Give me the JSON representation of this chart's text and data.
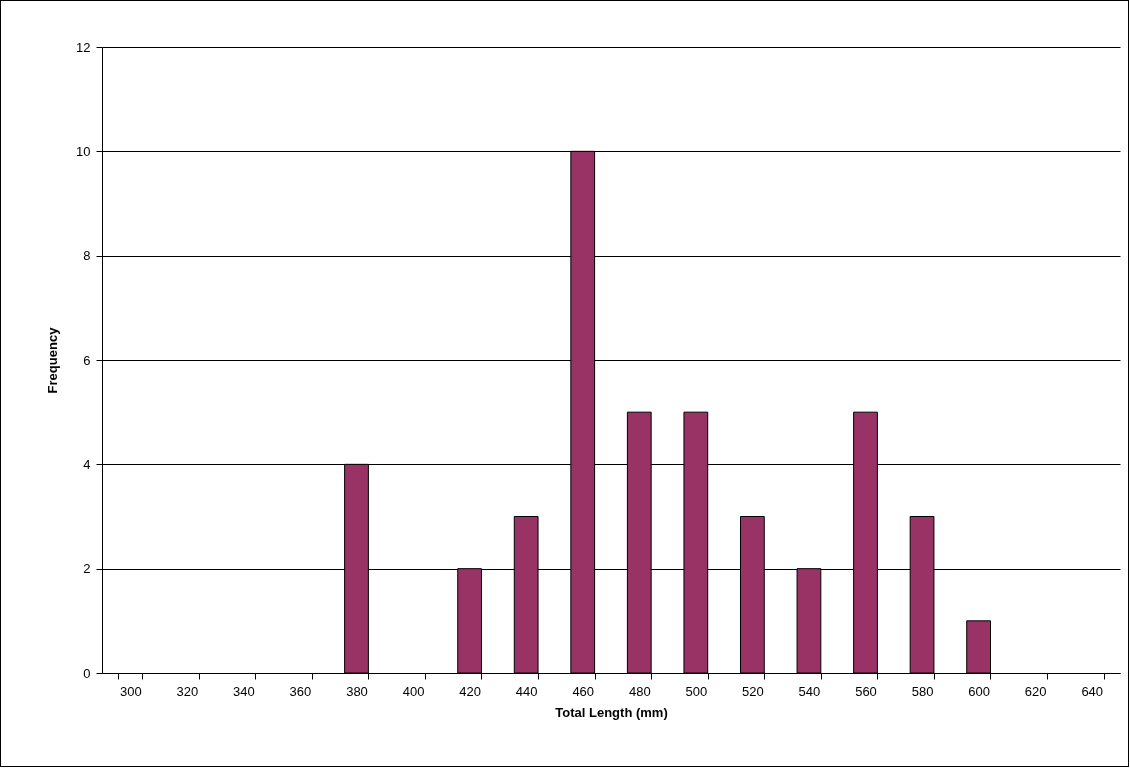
{
  "chart_data": {
    "type": "bar",
    "xlabel": "Total Length (mm)",
    "ylabel": "Frequency",
    "categories": [
      "300",
      "320",
      "340",
      "360",
      "380",
      "400",
      "420",
      "440",
      "460",
      "480",
      "500",
      "520",
      "540",
      "560",
      "580",
      "600",
      "620",
      "640"
    ],
    "values": [
      0,
      0,
      0,
      0,
      4,
      0,
      2,
      3,
      10,
      5,
      5,
      3,
      2,
      5,
      3,
      1,
      0,
      0
    ],
    "color": "#993366",
    "ylim": [
      0,
      12
    ],
    "yticks": [
      0,
      2,
      4,
      6,
      8,
      10,
      12
    ],
    "grid": "y"
  }
}
